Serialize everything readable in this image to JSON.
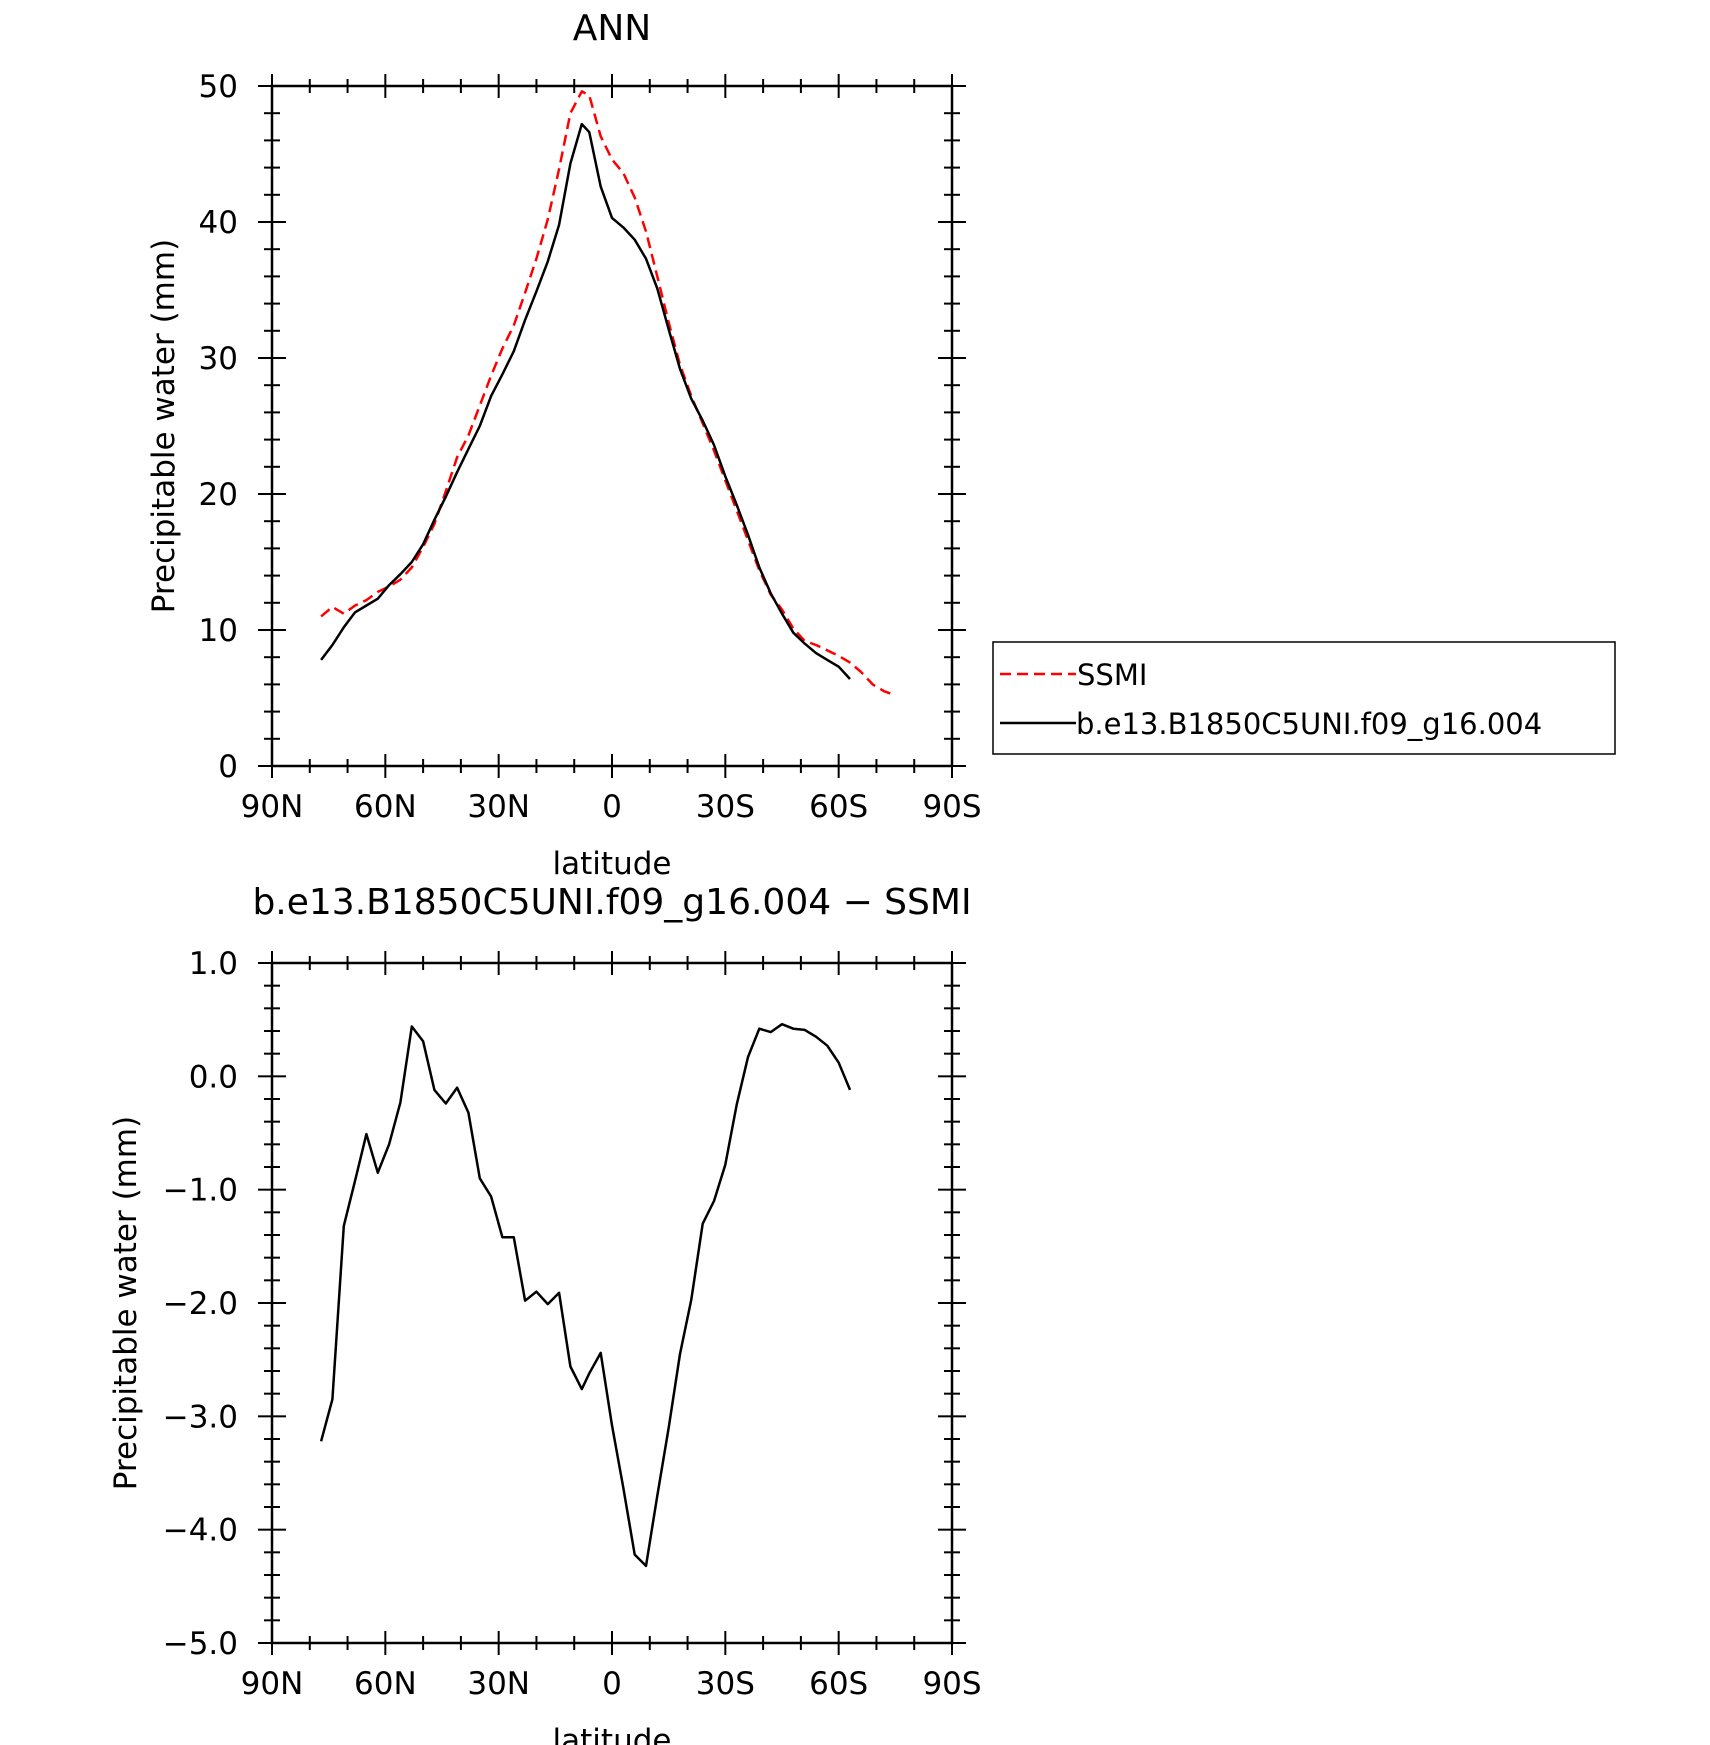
{
  "chart_data": [
    {
      "type": "line",
      "title": "ANN",
      "xlabel": "latitude",
      "ylabel": "Precipitable water (mm)",
      "xlim": [
        90,
        -90
      ],
      "ylim": [
        0,
        50
      ],
      "x_tick_values": [
        90,
        60,
        30,
        0,
        -30,
        -60,
        -90
      ],
      "x_tick_labels": [
        "90N",
        "60N",
        "30N",
        "0",
        "30S",
        "60S",
        "90S"
      ],
      "y_tick_values": [
        0,
        10,
        20,
        30,
        40,
        50
      ],
      "y_tick_labels": [
        "0",
        "10",
        "20",
        "30",
        "40",
        "50"
      ],
      "legend": "right",
      "grid": false,
      "series": [
        {
          "name": "SSMI",
          "color": "#ff0000",
          "dash": true,
          "x": [
            77,
            74,
            71,
            68,
            65,
            62,
            59,
            56,
            53,
            50,
            47,
            44,
            41,
            38,
            35,
            32,
            29,
            26,
            23,
            20,
            17,
            14,
            11,
            8,
            6,
            3,
            0,
            -3,
            -6,
            -9,
            -12,
            -15,
            -18,
            -21,
            -24,
            -27,
            -30,
            -33,
            -36,
            -39,
            -42,
            -45,
            -48,
            -51,
            -54,
            -57,
            -60,
            -63,
            -66,
            -69,
            -72,
            -75
          ],
          "y": [
            11,
            11.7,
            11.2,
            11.8,
            12.2,
            12.8,
            13.2,
            13.7,
            14.6,
            16.1,
            17.8,
            20.2,
            22.7,
            24.3,
            26.5,
            28.7,
            30.7,
            32.4,
            34.8,
            37.3,
            40.2,
            43.9,
            48,
            49.6,
            49.3,
            46.3,
            44.6,
            43.6,
            41.8,
            39.3,
            36,
            32.6,
            29.5,
            27.2,
            25.2,
            23.2,
            21,
            18.8,
            16.6,
            14.4,
            12.6,
            11.5,
            10.1,
            9.2,
            8.9,
            8.5,
            8.1,
            7.6,
            6.9,
            6,
            5.5,
            5.2
          ]
        },
        {
          "name": "b.e13.B1850C5UNI.f09_g16.004",
          "color": "#000000",
          "dash": false,
          "x": [
            77,
            74,
            71,
            68,
            65,
            62,
            59,
            56,
            53,
            50,
            47,
            44,
            41,
            38,
            35,
            32,
            29,
            26,
            23,
            20,
            17,
            14,
            11,
            8,
            6,
            3,
            0,
            -3,
            -6,
            -9,
            -12,
            -15,
            -18,
            -21,
            -24,
            -27,
            -30,
            -33,
            -36,
            -39,
            -42,
            -45,
            -48,
            -51,
            -54,
            -57,
            -60,
            -63
          ],
          "y": [
            7.8,
            8.9,
            10.2,
            11.3,
            11.8,
            12.3,
            13.3,
            14.1,
            15,
            16.3,
            18.1,
            19.8,
            21.6,
            23.3,
            25,
            27.2,
            28.8,
            30.5,
            32.8,
            34.9,
            37.1,
            39.8,
            44.3,
            47.2,
            46.6,
            42.6,
            40.3,
            39.6,
            38.7,
            37.3,
            35.1,
            32.1,
            29.2,
            27,
            25.4,
            23.6,
            21.3,
            19.2,
            17,
            14.6,
            12.7,
            11.2,
            9.8,
            9,
            8.3,
            7.8,
            7.3,
            6.4
          ]
        }
      ]
    },
    {
      "type": "line",
      "title": "b.e13.B1850C5UNI.f09_g16.004 − SSMI",
      "xlabel": "latitude",
      "ylabel": "Precipitable water (mm)",
      "xlim": [
        90,
        -90
      ],
      "ylim": [
        -5,
        1
      ],
      "x_tick_values": [
        90,
        60,
        30,
        0,
        -30,
        -60,
        -90
      ],
      "x_tick_labels": [
        "90N",
        "60N",
        "30N",
        "0",
        "30S",
        "60S",
        "90S"
      ],
      "y_tick_values": [
        1,
        0,
        -1,
        -2,
        -3,
        -4,
        -5
      ],
      "y_tick_labels": [
        "1.0",
        "0.0",
        "−1.0",
        "−2.0",
        "−3.0",
        "−4.0",
        "−5.0"
      ],
      "grid": false,
      "series": [
        {
          "color": "#000000",
          "dash": false,
          "x": [
            77,
            74,
            71,
            68,
            65,
            62,
            59,
            56,
            53,
            50,
            47,
            44,
            41,
            38,
            35,
            32,
            29,
            26,
            23,
            20,
            17,
            14,
            11,
            8,
            6,
            3,
            0,
            -3,
            -6,
            -9,
            -12,
            -15,
            -18,
            -21,
            -24,
            -27,
            -30,
            -33,
            -36,
            -39,
            -42,
            -45,
            -48,
            -51,
            -54,
            -57,
            -60,
            -63
          ],
          "y": [
            -3.22,
            -2.85,
            -1.32,
            -0.92,
            -0.51,
            -0.85,
            -0.6,
            -0.23,
            0.44,
            0.31,
            -0.12,
            -0.24,
            -0.1,
            -0.32,
            -0.9,
            -1.06,
            -1.42,
            -1.42,
            -1.98,
            -1.9,
            -2.01,
            -1.91,
            -2.56,
            -2.76,
            -2.62,
            -2.44,
            -3.08,
            -3.63,
            -4.22,
            -4.32,
            -3.7,
            -3.1,
            -2.45,
            -1.97,
            -1.3,
            -1.1,
            -0.78,
            -0.25,
            0.17,
            0.42,
            0.39,
            0.46,
            0.42,
            0.41,
            0.35,
            0.27,
            0.12,
            -0.12
          ]
        }
      ]
    }
  ],
  "legend": {
    "entries": [
      "SSMI",
      "b.e13.B1850C5UNI.f09_g16.004"
    ]
  }
}
